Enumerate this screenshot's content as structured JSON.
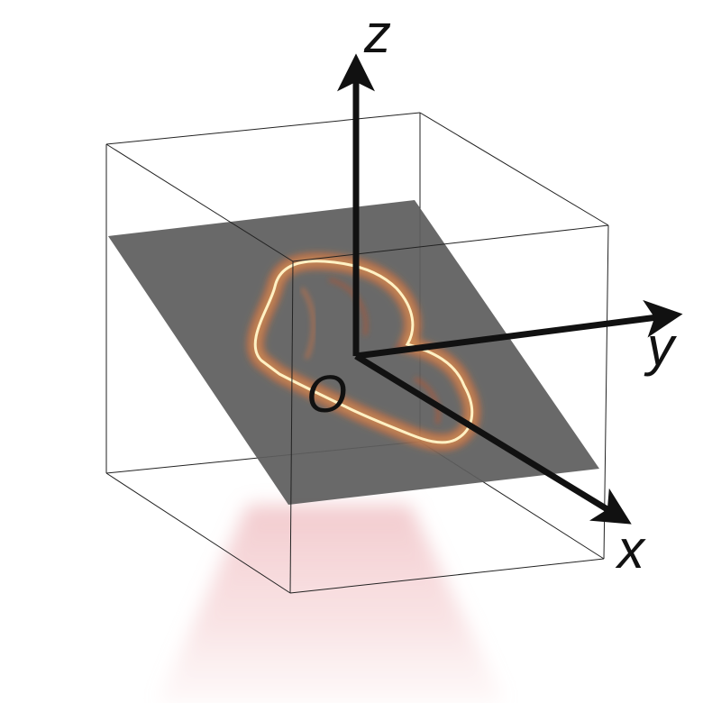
{
  "diagram": {
    "axes": {
      "z": "z",
      "y": "y",
      "x": "x",
      "origin": "O"
    },
    "colors": {
      "box_edges": "#222222",
      "slice_plane": "#5e5e5e",
      "axis_arrows": "#111111",
      "beam": "#e8a0a6",
      "signal_glow": "#ffd27a",
      "signal_core": "#fff1c4"
    },
    "elements": [
      "wireframe-cube",
      "image-slice-plane",
      "heart-shaped-signal",
      "light-beam",
      "coordinate-axes"
    ]
  }
}
